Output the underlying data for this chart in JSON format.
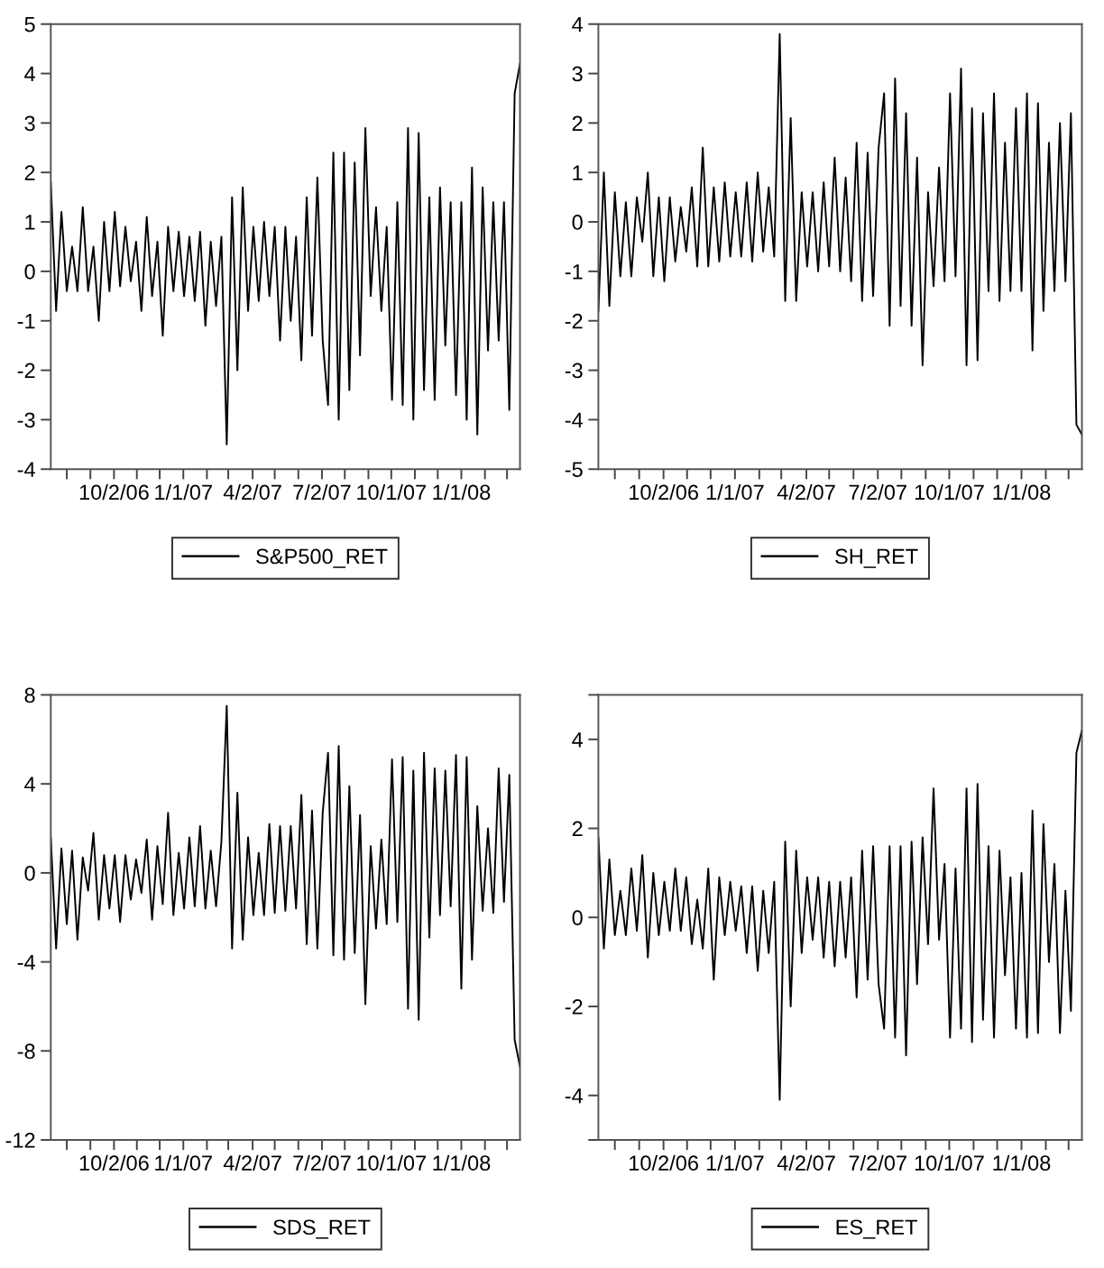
{
  "chart_data": [
    {
      "type": "line",
      "x": [
        "2006-07-11",
        "2006-07-18",
        "2006-07-25",
        "2006-08-01",
        "2006-08-08",
        "2006-08-15",
        "2006-08-22",
        "2006-08-29",
        "2006-09-05",
        "2006-09-12",
        "2006-09-19",
        "2006-09-26",
        "2006-10-03",
        "2006-10-10",
        "2006-10-17",
        "2006-10-24",
        "2006-10-31",
        "2006-11-07",
        "2006-11-14",
        "2006-11-21",
        "2006-11-28",
        "2006-12-05",
        "2006-12-12",
        "2006-12-19",
        "2006-12-26",
        "2007-01-02",
        "2007-01-09",
        "2007-01-16",
        "2007-01-23",
        "2007-01-30",
        "2007-02-06",
        "2007-02-13",
        "2007-02-20",
        "2007-02-27",
        "2007-03-06",
        "2007-03-13",
        "2007-03-20",
        "2007-03-27",
        "2007-04-03",
        "2007-04-10",
        "2007-04-17",
        "2007-04-24",
        "2007-05-01",
        "2007-05-08",
        "2007-05-15",
        "2007-05-22",
        "2007-05-29",
        "2007-06-05",
        "2007-06-12",
        "2007-06-19",
        "2007-06-26",
        "2007-07-03",
        "2007-07-10",
        "2007-07-17",
        "2007-07-24",
        "2007-07-31",
        "2007-08-07",
        "2007-08-14",
        "2007-08-21",
        "2007-08-28",
        "2007-09-04",
        "2007-09-11",
        "2007-09-18",
        "2007-09-25",
        "2007-10-02",
        "2007-10-09",
        "2007-10-16",
        "2007-10-23",
        "2007-10-30",
        "2007-11-06",
        "2007-11-13",
        "2007-11-20",
        "2007-11-27",
        "2007-12-04",
        "2007-12-11",
        "2007-12-18",
        "2007-12-25",
        "2008-01-01",
        "2008-01-08",
        "2008-01-15",
        "2008-01-22",
        "2008-01-29",
        "2008-02-05",
        "2008-02-12",
        "2008-02-19",
        "2008-02-26",
        "2008-03-04",
        "2008-03-11",
        "2008-03-18"
      ],
      "series": [
        {
          "name": "S&P500_RET",
          "color": "#000000",
          "values": [
            1.8,
            -0.8,
            1.2,
            -0.4,
            0.5,
            -0.4,
            1.3,
            -0.4,
            0.5,
            -1.0,
            1.0,
            -0.4,
            1.2,
            -0.3,
            0.9,
            -0.2,
            0.6,
            -0.8,
            1.1,
            -0.5,
            0.6,
            -1.3,
            0.9,
            -0.4,
            0.8,
            -0.5,
            0.7,
            -0.6,
            0.8,
            -1.1,
            0.6,
            -0.7,
            0.7,
            -3.5,
            1.5,
            -2.0,
            1.7,
            -0.8,
            0.9,
            -0.6,
            1.0,
            -0.5,
            0.9,
            -1.4,
            0.9,
            -1.0,
            0.7,
            -1.8,
            1.5,
            -1.3,
            1.9,
            -1.4,
            -2.7,
            2.4,
            -3.0,
            2.4,
            -2.4,
            2.2,
            -1.7,
            2.9,
            -0.5,
            1.3,
            -0.8,
            0.9,
            -2.6,
            1.4,
            -2.7,
            2.9,
            -3.0,
            2.8,
            -2.4,
            1.5,
            -2.6,
            1.7,
            -1.5,
            1.4,
            -2.5,
            1.4,
            -3.0,
            2.1,
            -3.3,
            1.7,
            -1.6,
            1.4,
            -1.4,
            1.4,
            -2.8,
            3.6,
            4.2
          ]
        }
      ],
      "xlim": [
        "2006-07-11",
        "2008-03-18"
      ],
      "ylim": [
        -4,
        5
      ],
      "yticks": [
        -4,
        -3,
        -2,
        -1,
        0,
        1,
        2,
        3,
        4,
        5
      ],
      "xticks": [
        {
          "value": "2006-08-01",
          "label": null
        },
        {
          "value": "2006-09-01",
          "label": null
        },
        {
          "value": "2006-10-02",
          "label": "10/2/06"
        },
        {
          "value": "2006-11-01",
          "label": null
        },
        {
          "value": "2006-12-01",
          "label": null
        },
        {
          "value": "2007-01-01",
          "label": "1/1/07"
        },
        {
          "value": "2007-02-01",
          "label": null
        },
        {
          "value": "2007-03-01",
          "label": null
        },
        {
          "value": "2007-04-02",
          "label": "4/2/07"
        },
        {
          "value": "2007-05-01",
          "label": null
        },
        {
          "value": "2007-06-01",
          "label": null
        },
        {
          "value": "2007-07-02",
          "label": "7/2/07"
        },
        {
          "value": "2007-08-01",
          "label": null
        },
        {
          "value": "2007-09-01",
          "label": null
        },
        {
          "value": "2007-10-01",
          "label": "10/1/07"
        },
        {
          "value": "2007-11-01",
          "label": null
        },
        {
          "value": "2007-12-01",
          "label": null
        },
        {
          "value": "2008-01-01",
          "label": "1/1/08"
        },
        {
          "value": "2008-02-01",
          "label": null
        },
        {
          "value": "2008-03-01",
          "label": null
        }
      ],
      "grid": false,
      "legend": "bottom",
      "marker": "none",
      "line_style": "solid"
    },
    {
      "type": "line",
      "x": [
        "2006-07-11",
        "2006-07-18",
        "2006-07-25",
        "2006-08-01",
        "2006-08-08",
        "2006-08-15",
        "2006-08-22",
        "2006-08-29",
        "2006-09-05",
        "2006-09-12",
        "2006-09-19",
        "2006-09-26",
        "2006-10-03",
        "2006-10-10",
        "2006-10-17",
        "2006-10-24",
        "2006-10-31",
        "2006-11-07",
        "2006-11-14",
        "2006-11-21",
        "2006-11-28",
        "2006-12-05",
        "2006-12-12",
        "2006-12-19",
        "2006-12-26",
        "2007-01-02",
        "2007-01-09",
        "2007-01-16",
        "2007-01-23",
        "2007-01-30",
        "2007-02-06",
        "2007-02-13",
        "2007-02-20",
        "2007-02-27",
        "2007-03-06",
        "2007-03-13",
        "2007-03-20",
        "2007-03-27",
        "2007-04-03",
        "2007-04-10",
        "2007-04-17",
        "2007-04-24",
        "2007-05-01",
        "2007-05-08",
        "2007-05-15",
        "2007-05-22",
        "2007-05-29",
        "2007-06-05",
        "2007-06-12",
        "2007-06-19",
        "2007-06-26",
        "2007-07-03",
        "2007-07-10",
        "2007-07-17",
        "2007-07-24",
        "2007-07-31",
        "2007-08-07",
        "2007-08-14",
        "2007-08-21",
        "2007-08-28",
        "2007-09-04",
        "2007-09-11",
        "2007-09-18",
        "2007-09-25",
        "2007-10-02",
        "2007-10-09",
        "2007-10-16",
        "2007-10-23",
        "2007-10-30",
        "2007-11-06",
        "2007-11-13",
        "2007-11-20",
        "2007-11-27",
        "2007-12-04",
        "2007-12-11",
        "2007-12-18",
        "2007-12-25",
        "2008-01-01",
        "2008-01-08",
        "2008-01-15",
        "2008-01-22",
        "2008-01-29",
        "2008-02-05",
        "2008-02-12",
        "2008-02-19",
        "2008-02-26",
        "2008-03-04",
        "2008-03-11",
        "2008-03-18"
      ],
      "series": [
        {
          "name": "SH_RET",
          "color": "#000000",
          "values": [
            -1.8,
            1.0,
            -1.7,
            0.6,
            -1.1,
            0.4,
            -1.1,
            0.5,
            -0.4,
            1.0,
            -1.1,
            0.5,
            -1.2,
            0.5,
            -0.8,
            0.3,
            -0.6,
            0.7,
            -0.9,
            1.5,
            -0.9,
            0.7,
            -0.8,
            0.8,
            -0.7,
            0.6,
            -0.7,
            0.8,
            -0.8,
            1.0,
            -0.6,
            0.7,
            -0.7,
            3.8,
            -1.6,
            2.1,
            -1.6,
            0.6,
            -0.9,
            0.6,
            -1.0,
            0.8,
            -0.9,
            1.3,
            -1.0,
            0.9,
            -1.2,
            1.6,
            -1.6,
            1.4,
            -1.5,
            1.5,
            2.6,
            -2.1,
            2.9,
            -1.7,
            2.2,
            -2.1,
            1.3,
            -2.9,
            0.6,
            -1.3,
            1.1,
            -1.2,
            2.6,
            -1.1,
            3.1,
            -2.9,
            2.3,
            -2.8,
            2.2,
            -1.4,
            2.6,
            -1.6,
            1.6,
            -1.4,
            2.3,
            -1.4,
            2.6,
            -2.6,
            2.4,
            -1.8,
            1.6,
            -1.4,
            2.0,
            -1.2,
            2.2,
            -4.1,
            -4.3
          ]
        }
      ],
      "xlim": [
        "2006-07-11",
        "2008-03-18"
      ],
      "ylim": [
        -5,
        4
      ],
      "yticks": [
        -5,
        -4,
        -3,
        -2,
        -1,
        0,
        1,
        2,
        3,
        4
      ],
      "xticks": [
        {
          "value": "2006-08-01",
          "label": null
        },
        {
          "value": "2006-09-01",
          "label": null
        },
        {
          "value": "2006-10-02",
          "label": "10/2/06"
        },
        {
          "value": "2006-11-01",
          "label": null
        },
        {
          "value": "2006-12-01",
          "label": null
        },
        {
          "value": "2007-01-01",
          "label": "1/1/07"
        },
        {
          "value": "2007-02-01",
          "label": null
        },
        {
          "value": "2007-03-01",
          "label": null
        },
        {
          "value": "2007-04-02",
          "label": "4/2/07"
        },
        {
          "value": "2007-05-01",
          "label": null
        },
        {
          "value": "2007-06-01",
          "label": null
        },
        {
          "value": "2007-07-02",
          "label": "7/2/07"
        },
        {
          "value": "2007-08-01",
          "label": null
        },
        {
          "value": "2007-09-01",
          "label": null
        },
        {
          "value": "2007-10-01",
          "label": "10/1/07"
        },
        {
          "value": "2007-11-01",
          "label": null
        },
        {
          "value": "2007-12-01",
          "label": null
        },
        {
          "value": "2008-01-01",
          "label": "1/1/08"
        },
        {
          "value": "2008-02-01",
          "label": null
        },
        {
          "value": "2008-03-01",
          "label": null
        }
      ],
      "grid": false,
      "legend": "bottom",
      "marker": "none",
      "line_style": "solid"
    },
    {
      "type": "line",
      "x": [
        "2006-07-11",
        "2006-07-18",
        "2006-07-25",
        "2006-08-01",
        "2006-08-08",
        "2006-08-15",
        "2006-08-22",
        "2006-08-29",
        "2006-09-05",
        "2006-09-12",
        "2006-09-19",
        "2006-09-26",
        "2006-10-03",
        "2006-10-10",
        "2006-10-17",
        "2006-10-24",
        "2006-10-31",
        "2006-11-07",
        "2006-11-14",
        "2006-11-21",
        "2006-11-28",
        "2006-12-05",
        "2006-12-12",
        "2006-12-19",
        "2006-12-26",
        "2007-01-02",
        "2007-01-09",
        "2007-01-16",
        "2007-01-23",
        "2007-01-30",
        "2007-02-06",
        "2007-02-13",
        "2007-02-20",
        "2007-02-27",
        "2007-03-06",
        "2007-03-13",
        "2007-03-20",
        "2007-03-27",
        "2007-04-03",
        "2007-04-10",
        "2007-04-17",
        "2007-04-24",
        "2007-05-01",
        "2007-05-08",
        "2007-05-15",
        "2007-05-22",
        "2007-05-29",
        "2007-06-05",
        "2007-06-12",
        "2007-06-19",
        "2007-06-26",
        "2007-07-03",
        "2007-07-10",
        "2007-07-17",
        "2007-07-24",
        "2007-07-31",
        "2007-08-07",
        "2007-08-14",
        "2007-08-21",
        "2007-08-28",
        "2007-09-04",
        "2007-09-11",
        "2007-09-18",
        "2007-09-25",
        "2007-10-02",
        "2007-10-09",
        "2007-10-16",
        "2007-10-23",
        "2007-10-30",
        "2007-11-06",
        "2007-11-13",
        "2007-11-20",
        "2007-11-27",
        "2007-12-04",
        "2007-12-11",
        "2007-12-18",
        "2007-12-25",
        "2008-01-01",
        "2008-01-08",
        "2008-01-15",
        "2008-01-22",
        "2008-01-29",
        "2008-02-05",
        "2008-02-12",
        "2008-02-19",
        "2008-02-26",
        "2008-03-04",
        "2008-03-11",
        "2008-03-18"
      ],
      "series": [
        {
          "name": "SDS_RET",
          "color": "#000000",
          "values": [
            1.6,
            -3.4,
            1.1,
            -2.3,
            1.0,
            -3.0,
            0.7,
            -0.8,
            1.8,
            -2.1,
            0.8,
            -1.6,
            0.8,
            -2.2,
            0.8,
            -1.2,
            0.6,
            -0.9,
            1.5,
            -2.1,
            1.2,
            -1.4,
            2.7,
            -1.9,
            0.9,
            -1.6,
            1.6,
            -1.5,
            2.1,
            -1.6,
            1.0,
            -1.5,
            1.4,
            7.5,
            -3.4,
            3.6,
            -3.0,
            1.6,
            -1.9,
            0.9,
            -1.9,
            2.2,
            -1.8,
            2.1,
            -1.7,
            2.1,
            -1.6,
            3.5,
            -3.2,
            2.8,
            -3.4,
            2.7,
            5.4,
            -3.7,
            5.7,
            -3.9,
            3.9,
            -3.6,
            2.6,
            -5.9,
            1.2,
            -2.5,
            1.5,
            -2.3,
            5.1,
            -2.2,
            5.2,
            -6.1,
            4.6,
            -6.6,
            5.4,
            -2.9,
            4.7,
            -1.9,
            4.6,
            -1.5,
            5.3,
            -5.2,
            5.2,
            -3.9,
            3.0,
            -1.7,
            2.0,
            -1.8,
            4.7,
            -1.3,
            4.4,
            -7.5,
            -8.7
          ]
        }
      ],
      "xlim": [
        "2006-07-11",
        "2008-03-18"
      ],
      "ylim": [
        -12,
        8
      ],
      "yticks": [
        -12,
        -8,
        -4,
        0,
        4,
        8
      ],
      "xticks": [
        {
          "value": "2006-08-01",
          "label": null
        },
        {
          "value": "2006-09-01",
          "label": null
        },
        {
          "value": "2006-10-02",
          "label": "10/2/06"
        },
        {
          "value": "2006-11-01",
          "label": null
        },
        {
          "value": "2006-12-01",
          "label": null
        },
        {
          "value": "2007-01-01",
          "label": "1/1/07"
        },
        {
          "value": "2007-02-01",
          "label": null
        },
        {
          "value": "2007-03-01",
          "label": null
        },
        {
          "value": "2007-04-02",
          "label": "4/2/07"
        },
        {
          "value": "2007-05-01",
          "label": null
        },
        {
          "value": "2007-06-01",
          "label": null
        },
        {
          "value": "2007-07-02",
          "label": "7/2/07"
        },
        {
          "value": "2007-08-01",
          "label": null
        },
        {
          "value": "2007-09-01",
          "label": null
        },
        {
          "value": "2007-10-01",
          "label": "10/1/07"
        },
        {
          "value": "2007-11-01",
          "label": null
        },
        {
          "value": "2007-12-01",
          "label": null
        },
        {
          "value": "2008-01-01",
          "label": "1/1/08"
        },
        {
          "value": "2008-02-01",
          "label": null
        },
        {
          "value": "2008-03-01",
          "label": null
        }
      ],
      "grid": false,
      "legend": "bottom",
      "marker": "none",
      "line_style": "solid"
    },
    {
      "type": "line",
      "x": [
        "2006-07-11",
        "2006-07-18",
        "2006-07-25",
        "2006-08-01",
        "2006-08-08",
        "2006-08-15",
        "2006-08-22",
        "2006-08-29",
        "2006-09-05",
        "2006-09-12",
        "2006-09-19",
        "2006-09-26",
        "2006-10-03",
        "2006-10-10",
        "2006-10-17",
        "2006-10-24",
        "2006-10-31",
        "2006-11-07",
        "2006-11-14",
        "2006-11-21",
        "2006-11-28",
        "2006-12-05",
        "2006-12-12",
        "2006-12-19",
        "2006-12-26",
        "2007-01-02",
        "2007-01-09",
        "2007-01-16",
        "2007-01-23",
        "2007-01-30",
        "2007-02-06",
        "2007-02-13",
        "2007-02-20",
        "2007-02-27",
        "2007-03-06",
        "2007-03-13",
        "2007-03-20",
        "2007-03-27",
        "2007-04-03",
        "2007-04-10",
        "2007-04-17",
        "2007-04-24",
        "2007-05-01",
        "2007-05-08",
        "2007-05-15",
        "2007-05-22",
        "2007-05-29",
        "2007-06-05",
        "2007-06-12",
        "2007-06-19",
        "2007-06-26",
        "2007-07-03",
        "2007-07-10",
        "2007-07-17",
        "2007-07-24",
        "2007-07-31",
        "2007-08-07",
        "2007-08-14",
        "2007-08-21",
        "2007-08-28",
        "2007-09-04",
        "2007-09-11",
        "2007-09-18",
        "2007-09-25",
        "2007-10-02",
        "2007-10-09",
        "2007-10-16",
        "2007-10-23",
        "2007-10-30",
        "2007-11-06",
        "2007-11-13",
        "2007-11-20",
        "2007-11-27",
        "2007-12-04",
        "2007-12-11",
        "2007-12-18",
        "2007-12-25",
        "2008-01-01",
        "2008-01-08",
        "2008-01-15",
        "2008-01-22",
        "2008-01-29",
        "2008-02-05",
        "2008-02-12",
        "2008-02-19",
        "2008-02-26",
        "2008-03-04",
        "2008-03-11",
        "2008-03-18"
      ],
      "series": [
        {
          "name": "ES_RET",
          "color": "#000000",
          "values": [
            1.8,
            -0.7,
            1.3,
            -0.4,
            0.6,
            -0.4,
            1.1,
            -0.3,
            1.4,
            -0.9,
            1.0,
            -0.4,
            0.8,
            -0.3,
            1.1,
            -0.3,
            0.9,
            -0.6,
            0.4,
            -0.7,
            1.1,
            -1.4,
            0.9,
            -0.4,
            0.8,
            -0.3,
            0.7,
            -0.8,
            0.7,
            -1.2,
            0.6,
            -0.8,
            0.8,
            -4.1,
            1.7,
            -2.0,
            1.5,
            -0.8,
            0.9,
            -0.5,
            0.9,
            -0.9,
            0.8,
            -1.1,
            0.8,
            -0.9,
            0.9,
            -1.8,
            1.5,
            -1.4,
            1.6,
            -1.5,
            -2.5,
            1.6,
            -2.7,
            1.6,
            -3.1,
            1.7,
            -1.5,
            1.8,
            -0.6,
            2.9,
            -0.5,
            1.2,
            -2.7,
            1.1,
            -2.5,
            2.9,
            -2.8,
            3.0,
            -2.3,
            1.6,
            -2.7,
            1.5,
            -1.3,
            0.9,
            -2.5,
            1.0,
            -2.7,
            2.4,
            -2.6,
            2.1,
            -1.0,
            1.2,
            -2.6,
            0.6,
            -2.1,
            3.7,
            4.2
          ]
        }
      ],
      "xlim": [
        "2006-07-11",
        "2008-03-18"
      ],
      "ylim": [
        -5,
        5
      ],
      "yticks": [
        {
          "value": -5,
          "label": null
        },
        -4,
        -2,
        0,
        2,
        4,
        {
          "value": 5,
          "label": null
        }
      ],
      "xticks": [
        {
          "value": "2006-08-01",
          "label": null
        },
        {
          "value": "2006-09-01",
          "label": null
        },
        {
          "value": "2006-10-02",
          "label": "10/2/06"
        },
        {
          "value": "2006-11-01",
          "label": null
        },
        {
          "value": "2006-12-01",
          "label": null
        },
        {
          "value": "2007-01-01",
          "label": "1/1/07"
        },
        {
          "value": "2007-02-01",
          "label": null
        },
        {
          "value": "2007-03-01",
          "label": null
        },
        {
          "value": "2007-04-02",
          "label": "4/2/07"
        },
        {
          "value": "2007-05-01",
          "label": null
        },
        {
          "value": "2007-06-01",
          "label": null
        },
        {
          "value": "2007-07-02",
          "label": "7/2/07"
        },
        {
          "value": "2007-08-01",
          "label": null
        },
        {
          "value": "2007-09-01",
          "label": null
        },
        {
          "value": "2007-10-01",
          "label": "10/1/07"
        },
        {
          "value": "2007-11-01",
          "label": null
        },
        {
          "value": "2007-12-01",
          "label": null
        },
        {
          "value": "2008-01-01",
          "label": "1/1/08"
        },
        {
          "value": "2008-02-01",
          "label": null
        },
        {
          "value": "2008-03-01",
          "label": null
        }
      ],
      "grid": false,
      "legend": "bottom",
      "marker": "none",
      "line_style": "solid"
    }
  ]
}
